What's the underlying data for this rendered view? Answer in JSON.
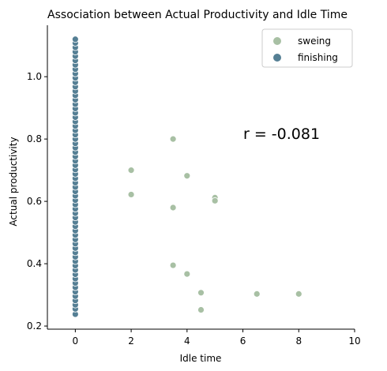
{
  "chart_data": {
    "type": "scatter",
    "title": "Association between Actual Productivity and Idle Time",
    "xlabel": "Idle time",
    "ylabel": "Actual productivity",
    "xlim": [
      -1,
      10
    ],
    "ylim": [
      0.19,
      1.165
    ],
    "xticks": [
      0,
      2,
      4,
      6,
      8,
      10
    ],
    "yticks": [
      0.2,
      0.4,
      0.6,
      0.8,
      1.0
    ],
    "xtick_labels": [
      "0",
      "2",
      "4",
      "6",
      "8",
      "10"
    ],
    "ytick_labels": [
      "0.2",
      "0.4",
      "0.6",
      "0.8",
      "1.0"
    ],
    "annotation": "r = -0.081",
    "legend_position": "top-right",
    "series": [
      {
        "name": "sweing",
        "color": "#a8c0a4",
        "points": [
          [
            0,
            0.24
          ],
          [
            0,
            0.27
          ],
          [
            0,
            0.33
          ],
          [
            0,
            0.41
          ],
          [
            0,
            0.47
          ],
          [
            0,
            0.53
          ],
          [
            0,
            0.59
          ],
          [
            0,
            0.64
          ],
          [
            0,
            0.7
          ],
          [
            0,
            0.75
          ],
          [
            0,
            0.8
          ],
          [
            0,
            0.85
          ],
          [
            0,
            0.9
          ],
          [
            0,
            0.95
          ],
          [
            0,
            1.0
          ],
          [
            2,
            0.7
          ],
          [
            2,
            0.622
          ],
          [
            3.5,
            0.8
          ],
          [
            3.5,
            0.58
          ],
          [
            3.5,
            0.395
          ],
          [
            4,
            0.682
          ],
          [
            4,
            0.367
          ],
          [
            4.5,
            0.307
          ],
          [
            4.5,
            0.252
          ],
          [
            5,
            0.612
          ],
          [
            5,
            0.602
          ],
          [
            6.5,
            0.303
          ],
          [
            8,
            0.303
          ]
        ]
      },
      {
        "name": "finishing",
        "color": "#557f94",
        "points": [
          [
            0,
            0.238
          ],
          [
            0,
            0.255
          ],
          [
            0,
            0.268
          ],
          [
            0,
            0.282
          ],
          [
            0,
            0.296
          ],
          [
            0,
            0.31
          ],
          [
            0,
            0.324
          ],
          [
            0,
            0.338
          ],
          [
            0,
            0.352
          ],
          [
            0,
            0.366
          ],
          [
            0,
            0.38
          ],
          [
            0,
            0.394
          ],
          [
            0,
            0.408
          ],
          [
            0,
            0.422
          ],
          [
            0,
            0.436
          ],
          [
            0,
            0.45
          ],
          [
            0,
            0.464
          ],
          [
            0,
            0.478
          ],
          [
            0,
            0.492
          ],
          [
            0,
            0.506
          ],
          [
            0,
            0.52
          ],
          [
            0,
            0.534
          ],
          [
            0,
            0.548
          ],
          [
            0,
            0.562
          ],
          [
            0,
            0.576
          ],
          [
            0,
            0.59
          ],
          [
            0,
            0.604
          ],
          [
            0,
            0.618
          ],
          [
            0,
            0.632
          ],
          [
            0,
            0.646
          ],
          [
            0,
            0.66
          ],
          [
            0,
            0.674
          ],
          [
            0,
            0.688
          ],
          [
            0,
            0.702
          ],
          [
            0,
            0.716
          ],
          [
            0,
            0.73
          ],
          [
            0,
            0.744
          ],
          [
            0,
            0.758
          ],
          [
            0,
            0.772
          ],
          [
            0,
            0.786
          ],
          [
            0,
            0.8
          ],
          [
            0,
            0.814
          ],
          [
            0,
            0.828
          ],
          [
            0,
            0.842
          ],
          [
            0,
            0.856
          ],
          [
            0,
            0.87
          ],
          [
            0,
            0.884
          ],
          [
            0,
            0.898
          ],
          [
            0,
            0.912
          ],
          [
            0,
            0.926
          ],
          [
            0,
            0.94
          ],
          [
            0,
            0.954
          ],
          [
            0,
            0.968
          ],
          [
            0,
            0.982
          ],
          [
            0,
            0.996
          ],
          [
            0,
            1.01
          ],
          [
            0,
            1.024
          ],
          [
            0,
            1.038
          ],
          [
            0,
            1.052
          ],
          [
            0,
            1.066
          ],
          [
            0,
            1.08
          ],
          [
            0,
            1.094
          ],
          [
            0,
            1.108
          ],
          [
            0,
            1.12
          ]
        ]
      }
    ]
  }
}
